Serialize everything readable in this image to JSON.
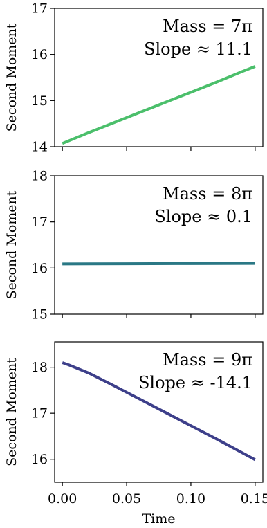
{
  "chart_data": [
    {
      "type": "line",
      "xlabel": "",
      "ylabel": "Second Moment",
      "xlim": [
        -0.006,
        0.156
      ],
      "ylim": [
        14,
        17
      ],
      "yticks": [
        14,
        15,
        16,
        17
      ],
      "xticks": [
        0.0,
        0.05,
        0.1,
        0.15
      ],
      "xtick_labels_shown": false,
      "annotation": [
        "Mass = 7π",
        "Slope ≈ 11.1"
      ],
      "series": [
        {
          "color": "#4bbf6b",
          "x": [
            0.0,
            0.02,
            0.04,
            0.06,
            0.08,
            0.1,
            0.12,
            0.14,
            0.15
          ],
          "y": [
            14.07,
            14.3,
            14.52,
            14.74,
            14.96,
            15.18,
            15.4,
            15.63,
            15.74
          ]
        }
      ]
    },
    {
      "type": "line",
      "xlabel": "",
      "ylabel": "Second Moment",
      "xlim": [
        -0.006,
        0.156
      ],
      "ylim": [
        15,
        18
      ],
      "yticks": [
        15,
        16,
        17,
        18
      ],
      "xticks": [
        0.0,
        0.05,
        0.1,
        0.15
      ],
      "xtick_labels_shown": false,
      "annotation": [
        "Mass = 8π",
        "Slope ≈ 0.1"
      ],
      "series": [
        {
          "color": "#2a7885",
          "x": [
            0.0,
            0.05,
            0.1,
            0.15
          ],
          "y": [
            16.09,
            16.093,
            16.097,
            16.1
          ]
        }
      ]
    },
    {
      "type": "line",
      "xlabel": "Time",
      "ylabel": "Second Moment",
      "xlim": [
        -0.006,
        0.156
      ],
      "ylim": [
        15.5,
        18.55
      ],
      "yticks": [
        16,
        17,
        18
      ],
      "xticks": [
        0.0,
        0.05,
        0.1,
        0.15
      ],
      "xtick_labels": [
        "0.00",
        "0.05",
        "0.10",
        "0.15"
      ],
      "xtick_labels_shown": true,
      "annotation": [
        "Mass = 9π",
        "Slope ≈ -14.1"
      ],
      "series": [
        {
          "color": "#3d3f8a",
          "x": [
            0.0,
            0.005,
            0.02,
            0.04,
            0.06,
            0.08,
            0.1,
            0.12,
            0.14,
            0.15
          ],
          "y": [
            18.1,
            18.05,
            17.88,
            17.6,
            17.31,
            17.02,
            16.73,
            16.44,
            16.14,
            15.99
          ]
        }
      ]
    }
  ]
}
